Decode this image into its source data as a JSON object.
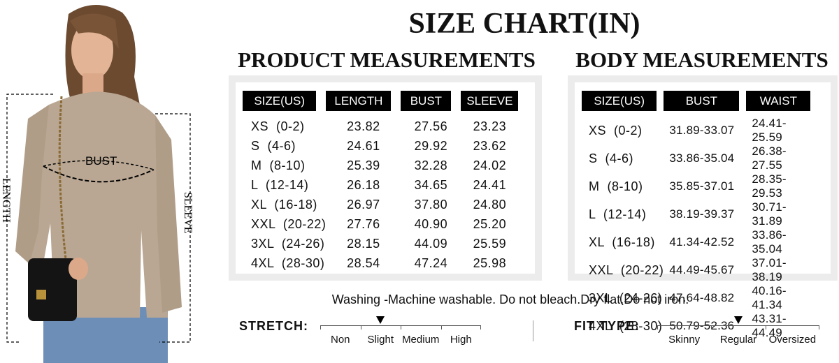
{
  "figure": {
    "bust_label": "BUST",
    "length_label": "LENGTH",
    "sleeve_label": "SLEEVE"
  },
  "title": "SIZE CHART(IN)",
  "product": {
    "title": "PRODUCT MEASUREMENTS",
    "headers": [
      "SIZE(US)",
      "LENGTH",
      "BUST",
      "SLEEVE"
    ],
    "rows": [
      [
        "XS  (0-2)",
        "23.82",
        "27.56",
        "23.23"
      ],
      [
        "S  (4-6)",
        "24.61",
        "29.92",
        "23.62"
      ],
      [
        "M  (8-10)",
        "25.39",
        "32.28",
        "24.02"
      ],
      [
        "L  (12-14)",
        "26.18",
        "34.65",
        "24.41"
      ],
      [
        "XL  (16-18)",
        "26.97",
        "37.80",
        "24.80"
      ],
      [
        "XXL  (20-22)",
        "27.76",
        "40.90",
        "25.20"
      ],
      [
        "3XL  (24-26)",
        "28.15",
        "44.09",
        "25.59"
      ],
      [
        "4XL  (28-30)",
        "28.54",
        "47.24",
        "25.98"
      ]
    ]
  },
  "body": {
    "title": "BODY MEASUREMENTS",
    "headers": [
      "SIZE(US)",
      "BUST",
      "WAIST"
    ],
    "rows": [
      [
        "XS  (0-2)",
        "31.89-33.07",
        "24.41-25.59"
      ],
      [
        "S  (4-6)",
        "33.86-35.04",
        "26.38-27.55"
      ],
      [
        "M  (8-10)",
        "35.85-37.01",
        "28.35-29.53"
      ],
      [
        "L  (12-14)",
        "38.19-39.37",
        "30.71-31.89"
      ],
      [
        "XL  (16-18)",
        "41.34-42.52",
        "33.86-35.04"
      ],
      [
        "XXL  (20-22)",
        "44.49-45.67",
        "37.01-38.19"
      ],
      [
        "3XL  (24-26)",
        "47.64-48.82",
        "40.16-41.34"
      ],
      [
        "4XL  (28-30)",
        "50.79-52.36",
        "43.31-44.49"
      ]
    ]
  },
  "washing": "Washing -Machine washable. Do not bleach.Dry flat.Do not iron.",
  "stretch": {
    "label": "STRETCH:",
    "options": [
      "Non",
      "Slight",
      "Medium",
      "High"
    ],
    "selected_index": 1
  },
  "fit": {
    "label": "FIT TYPE:",
    "options": [
      "Skinny",
      "Regular",
      "Oversized"
    ],
    "selected_index": 1
  },
  "colors": {
    "header_bg": "#000000",
    "panel_border": "#ececec",
    "sweater": "#b9a793"
  }
}
